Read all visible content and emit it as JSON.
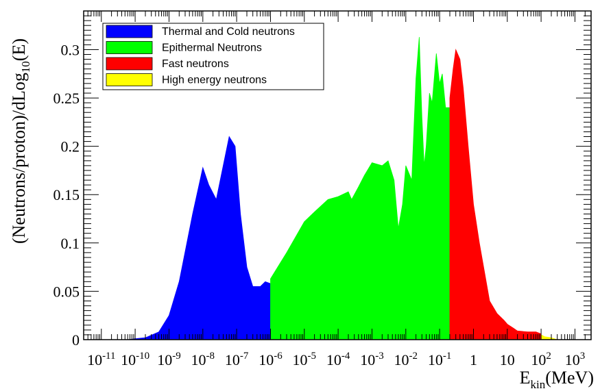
{
  "chart_data": {
    "type": "area",
    "x_scale": "log10",
    "x_unit": "MeV",
    "xlabel": "E_kin(MeV)",
    "xlabel_main": "E",
    "xlabel_sub": "kin",
    "xlabel_unit": "(MeV)",
    "ylabel_pre": "(Neutrons/proton)/dLog",
    "ylabel_sub": "10",
    "ylabel_post": "(E)",
    "xlim": [
      3e-12,
      3000
    ],
    "ylim": [
      0,
      0.34
    ],
    "grid": false,
    "legend_position": "top-left",
    "x_ticks": [
      {
        "value": 1e-11,
        "base": "10",
        "exp": "-11"
      },
      {
        "value": 1e-10,
        "base": "10",
        "exp": "-10"
      },
      {
        "value": 1e-09,
        "base": "10",
        "exp": "-9"
      },
      {
        "value": 1e-08,
        "base": "10",
        "exp": "-8"
      },
      {
        "value": 1e-07,
        "base": "10",
        "exp": "-7"
      },
      {
        "value": 1e-06,
        "base": "10",
        "exp": "-6"
      },
      {
        "value": 1e-05,
        "base": "10",
        "exp": "-5"
      },
      {
        "value": 0.0001,
        "base": "10",
        "exp": "-4"
      },
      {
        "value": 0.001,
        "base": "10",
        "exp": "-3"
      },
      {
        "value": 0.01,
        "base": "10",
        "exp": "-2"
      },
      {
        "value": 0.1,
        "base": "10",
        "exp": "-1"
      },
      {
        "value": 1,
        "base": "1",
        "exp": ""
      },
      {
        "value": 10,
        "base": "10",
        "exp": ""
      },
      {
        "value": 100,
        "base": "10",
        "exp": "2"
      },
      {
        "value": 1000,
        "base": "10",
        "exp": "3"
      }
    ],
    "y_ticks": [
      {
        "value": 0,
        "label": "0"
      },
      {
        "value": 0.05,
        "label": "0.05"
      },
      {
        "value": 0.1,
        "label": "0.1"
      },
      {
        "value": 0.15,
        "label": "0.15"
      },
      {
        "value": 0.2,
        "label": "0.2"
      },
      {
        "value": 0.25,
        "label": "0.25"
      },
      {
        "value": 0.3,
        "label": "0.3"
      }
    ],
    "series": [
      {
        "name": "Thermal and Cold neutrons",
        "color": "#0000ff",
        "x": [
          6e-11,
          1e-10,
          2e-10,
          5e-10,
          1e-09,
          2e-09,
          5e-09,
          1e-08,
          1.5e-08,
          2.5e-08,
          4e-08,
          6e-08,
          9e-08,
          1.3e-07,
          2e-07,
          3e-07,
          5e-07,
          7e-07,
          1e-06
        ],
        "y": [
          0,
          0.001,
          0.002,
          0.008,
          0.025,
          0.06,
          0.13,
          0.178,
          0.16,
          0.145,
          0.18,
          0.21,
          0.2,
          0.13,
          0.075,
          0.055,
          0.055,
          0.06,
          0.058
        ]
      },
      {
        "name": "Epithermal Neutrons",
        "color": "#00ff00",
        "x": [
          1e-06,
          3e-06,
          1e-05,
          2e-05,
          5e-05,
          0.0001,
          0.0002,
          0.00025,
          0.0004,
          0.0006,
          0.001,
          0.002,
          0.003,
          0.0045,
          0.006,
          0.008,
          0.01,
          0.015,
          0.02,
          0.025,
          0.03,
          0.035,
          0.04,
          0.05,
          0.06,
          0.08,
          0.1,
          0.12,
          0.15,
          0.2
        ],
        "y": [
          0.063,
          0.09,
          0.122,
          0.132,
          0.145,
          0.148,
          0.153,
          0.145,
          0.158,
          0.17,
          0.183,
          0.18,
          0.185,
          0.165,
          0.115,
          0.14,
          0.18,
          0.165,
          0.27,
          0.313,
          0.23,
          0.18,
          0.2,
          0.255,
          0.245,
          0.296,
          0.265,
          0.275,
          0.24,
          0.24
        ]
      },
      {
        "name": "Fast neutrons",
        "color": "#ff0000",
        "x": [
          0.2,
          0.25,
          0.3,
          0.4,
          0.5,
          0.7,
          1,
          1.5,
          2,
          3,
          5,
          8,
          10,
          15,
          20,
          40,
          70,
          100
        ],
        "y": [
          0.25,
          0.28,
          0.3,
          0.29,
          0.26,
          0.2,
          0.14,
          0.1,
          0.075,
          0.04,
          0.027,
          0.02,
          0.016,
          0.012,
          0.009,
          0.008,
          0.008,
          0.006
        ]
      },
      {
        "name": "High energy neutrons",
        "color": "#ffff00",
        "x": [
          100,
          130,
          200,
          300
        ],
        "y": [
          0.005,
          0.003,
          0.002,
          0
        ]
      }
    ]
  }
}
